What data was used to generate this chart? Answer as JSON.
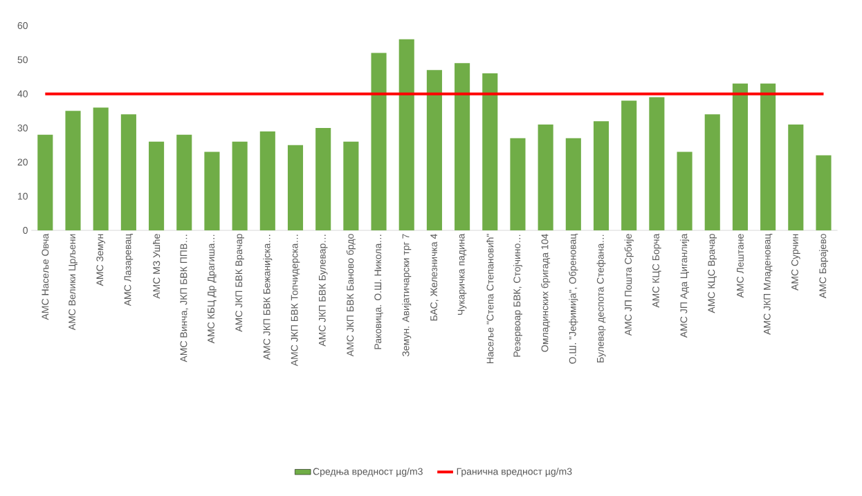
{
  "chart_data": {
    "type": "bar",
    "categories": [
      "АМС Насеље Овча",
      "АМС Велики Црљени",
      "АМС Земун",
      "АМС Лазаревац",
      "АМС МЗ Ушће",
      "АМС Винча, ЈКП БВК ППВ…",
      "АМС КБЦ Др Драгиша…",
      "АМС ЈКП БВК Врачар",
      "АМС ЈКП БВК Бежанијска…",
      "АМС ЈКП БВК Топчидерска…",
      "АМС ЈКП БВК Булевар…",
      "АМС ЈКП БВК Баново брдо",
      "Раковица. О.Ш. Никола…",
      "Земун. Авијатичарски трг  7",
      "БАС, Железничка 4",
      "Чукаричка падина",
      "Насеље \"Степа Степановић\"",
      "Резервоар БВК, Стојчино…",
      "Омладинских бригада 104",
      "О.Ш. \"Јефимија\", Обреновац",
      "Булевар деспота Стефана…",
      "АМС ЈП Пошта Србије",
      "АМС КЦС Борча",
      "АМС ЈП Ада Циганлија",
      "АМС КЦС Врачар",
      "АМС Лештане",
      "АМС ЈКП Младеновац",
      "АМС Сурчин",
      "АМС Барајево"
    ],
    "series": [
      {
        "name": "Средња вредност µg/m3",
        "color": "#70ad47",
        "values": [
          28,
          35,
          36,
          34,
          26,
          28,
          23,
          26,
          29,
          25,
          30,
          26,
          52,
          56,
          47,
          49,
          46,
          27,
          31,
          27,
          32,
          38,
          39,
          23,
          34,
          43,
          43,
          31,
          22
        ]
      },
      {
        "name": "Гранична вредност µg/m3",
        "type": "line",
        "color": "#ff0000",
        "values": [
          40,
          40,
          40,
          40,
          40,
          40,
          40,
          40,
          40,
          40,
          40,
          40,
          40,
          40,
          40,
          40,
          40,
          40,
          40,
          40,
          40,
          40,
          40,
          40,
          40,
          40,
          40,
          40,
          40
        ]
      }
    ],
    "ylim": [
      0,
      60
    ],
    "yticks": [
      0,
      10,
      20,
      30,
      40,
      50,
      60
    ],
    "legend": "bottom"
  }
}
